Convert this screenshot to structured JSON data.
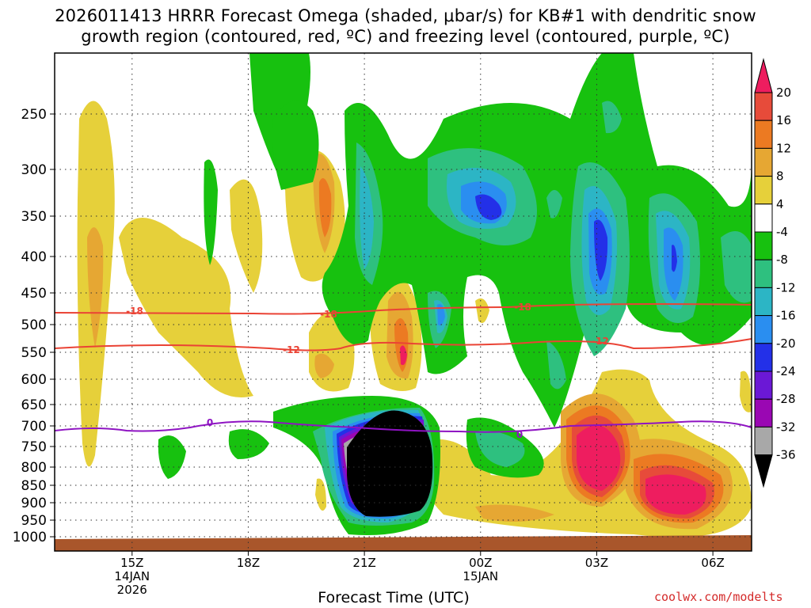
{
  "chart_data": {
    "type": "contour",
    "title_line1": "2026011413 HRRR Forecast Omega (shaded, μbar/s) for KB#1 with dendritic snow",
    "title_line2": "growth region (contoured, red, ºC) and freezing level (contoured, purple, ºC)",
    "xlabel": "Forecast Time (UTC)",
    "ylabel": "",
    "credit": "coolwx.com/modelts",
    "x_ticks": [
      {
        "label": "15Z",
        "sub": [
          "14JAN",
          "2026"
        ],
        "hour": 15
      },
      {
        "label": "18Z",
        "sub": [],
        "hour": 18
      },
      {
        "label": "21Z",
        "sub": [],
        "hour": 21
      },
      {
        "label": "00Z",
        "sub": [
          "15JAN"
        ],
        "hour": 24
      },
      {
        "label": "03Z",
        "sub": [],
        "hour": 27
      },
      {
        "label": "06Z",
        "sub": [],
        "hour": 30
      }
    ],
    "x_range_hours": [
      13,
      31
    ],
    "y_ticks": [
      250,
      300,
      350,
      400,
      450,
      500,
      550,
      600,
      650,
      700,
      750,
      800,
      850,
      900,
      950,
      1000
    ],
    "y_range_hpa": [
      200,
      1020
    ],
    "colorbar": {
      "labels": [
        "20",
        "16",
        "12",
        "8",
        "4",
        "-4",
        "-8",
        "-12",
        "-16",
        "-20",
        "-24",
        "-28",
        "-32",
        "-36"
      ],
      "colors": [
        "#ee1d5f",
        "#e74b3a",
        "#ec7a22",
        "#e6a733",
        "#e6d03a",
        "#ffffff",
        "#17c10f",
        "#2ec07f",
        "#2cb5c5",
        "#2a8ef0",
        "#2330e8",
        "#6b18d6",
        "#9a07b3",
        "#a8a8a8",
        "#000000"
      ]
    },
    "contour_labels": {
      "dgz_upper": "-18",
      "dgz_lower": "-12",
      "freezing": "0"
    }
  }
}
